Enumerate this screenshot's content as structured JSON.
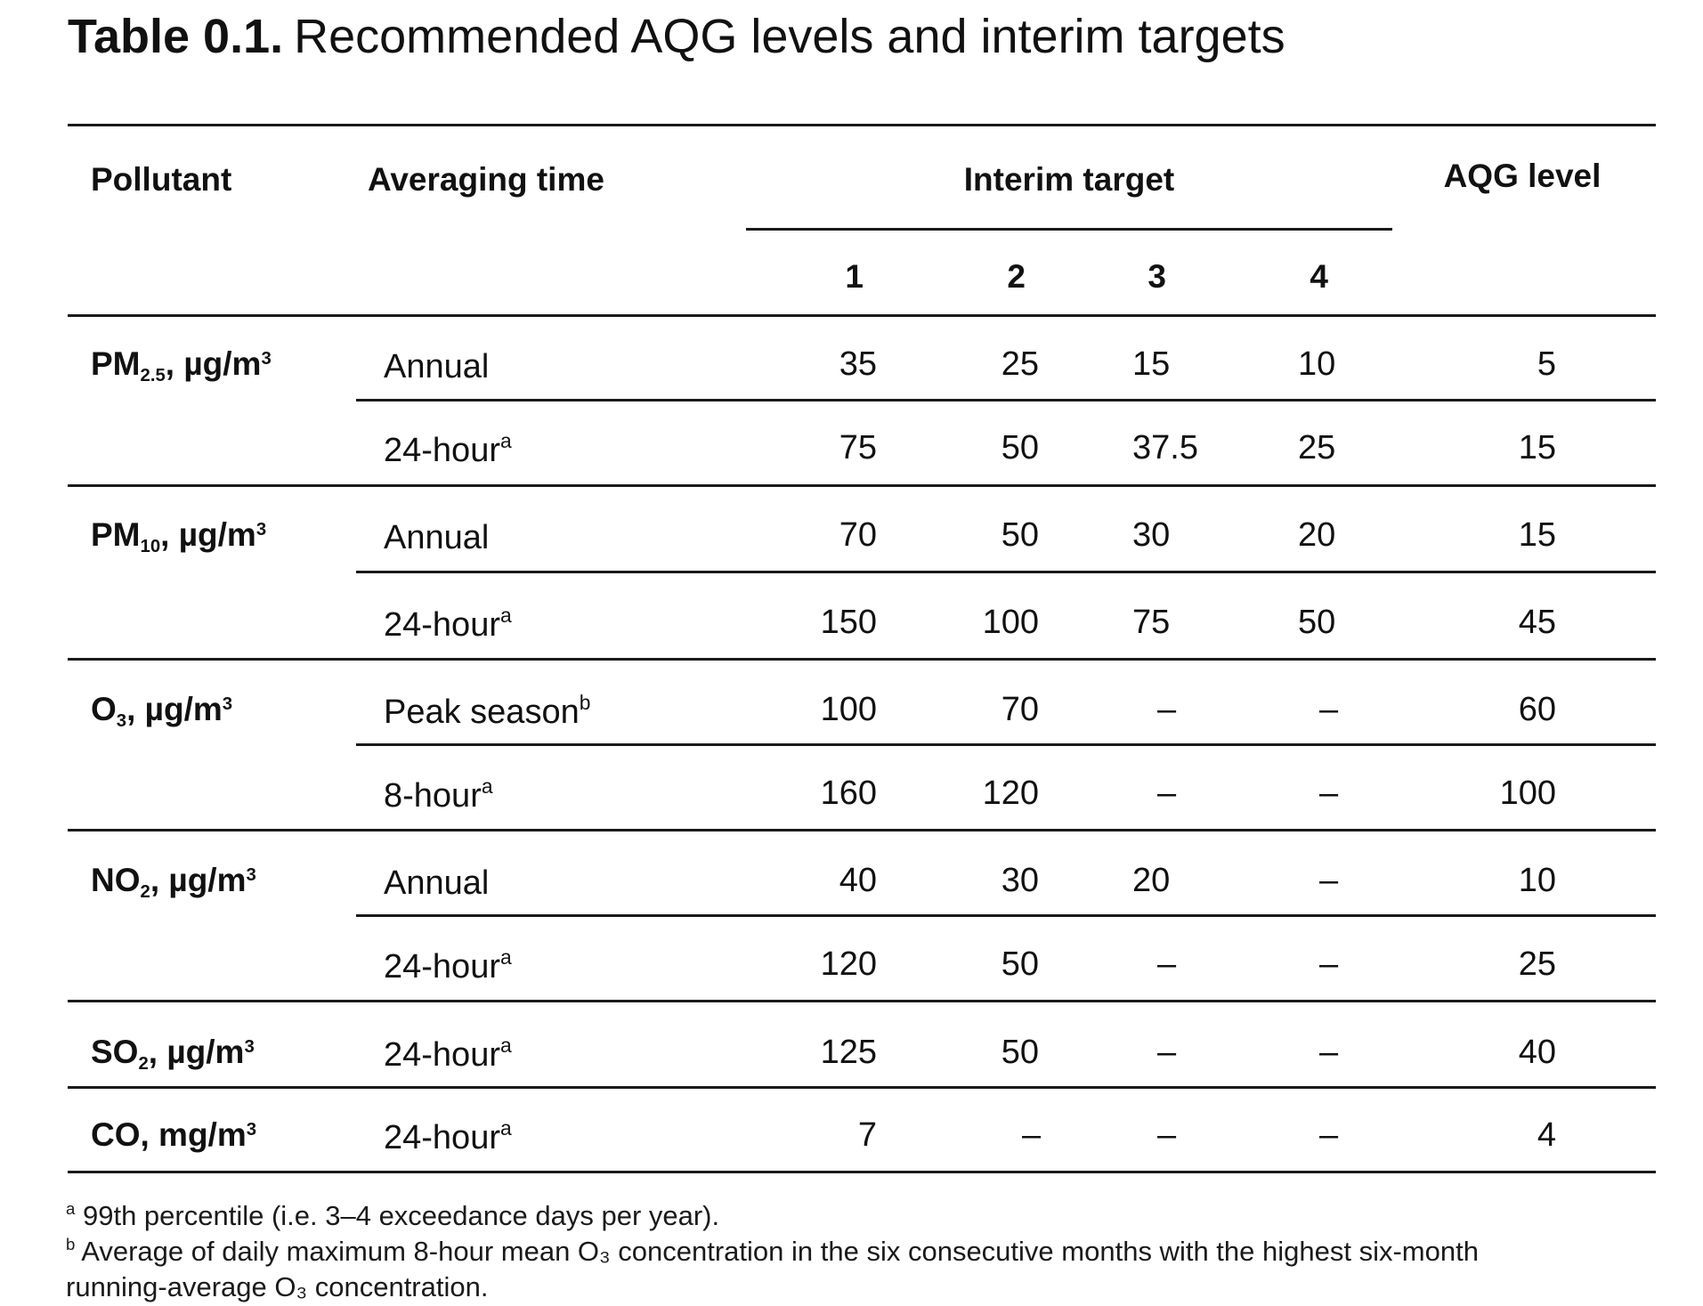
{
  "title": {
    "number": "Table 0.1.",
    "text": "Recommended AQG levels and interim targets"
  },
  "headers": {
    "pollutant": "Pollutant",
    "averaging_time": "Averaging time",
    "interim_target": "Interim target",
    "aqg_level": "AQG level",
    "it1": "1",
    "it2": "2",
    "it3": "3",
    "it4": "4"
  },
  "pollutants": [
    {
      "base": "PM",
      "sub": "2.5",
      "unit": ", µg/m",
      "sup": "3"
    },
    {
      "base": "PM",
      "sub": "10",
      "unit": ", µg/m",
      "sup": "3"
    },
    {
      "base": "O",
      "sub": "3",
      "unit": ", µg/m",
      "sup": "3"
    },
    {
      "base": "NO",
      "sub": "2",
      "unit": ", µg/m",
      "sup": "3"
    },
    {
      "base": "SO",
      "sub": "2",
      "unit": ", µg/m",
      "sup": "3"
    },
    {
      "base": "CO",
      "sub": "",
      "unit": ", mg/m",
      "sup": "3"
    }
  ],
  "rows": [
    {
      "avg": "Annual",
      "mark": "",
      "it1": "35",
      "it2": "25",
      "it3": "15",
      "it4": "10",
      "aqg": "5"
    },
    {
      "avg": "24-hour",
      "mark": "a",
      "it1": "75",
      "it2": "50",
      "it3": "37.5",
      "it4": "25",
      "aqg": "15"
    },
    {
      "avg": "Annual",
      "mark": "",
      "it1": "70",
      "it2": "50",
      "it3": "30",
      "it4": "20",
      "aqg": "15"
    },
    {
      "avg": "24-hour",
      "mark": "a",
      "it1": "150",
      "it2": "100",
      "it3": "75",
      "it4": "50",
      "aqg": "45"
    },
    {
      "avg": "Peak season",
      "mark": "b",
      "it1": "100",
      "it2": "70",
      "it3": "–",
      "it4": "–",
      "aqg": "60"
    },
    {
      "avg": "8-hour",
      "mark": "a",
      "it1": "160",
      "it2": "120",
      "it3": "–",
      "it4": "–",
      "aqg": "100"
    },
    {
      "avg": "Annual",
      "mark": "",
      "it1": "40",
      "it2": "30",
      "it3": "20",
      "it4": "–",
      "aqg": "10"
    },
    {
      "avg": "24-hour",
      "mark": "a",
      "it1": "120",
      "it2": "50",
      "it3": "–",
      "it4": "–",
      "aqg": "25"
    },
    {
      "avg": "24-hour",
      "mark": "a",
      "it1": "125",
      "it2": "50",
      "it3": "–",
      "it4": "–",
      "aqg": "40"
    },
    {
      "avg": "24-hour",
      "mark": "a",
      "it1": "7",
      "it2": "–",
      "it3": "–",
      "it4": "–",
      "aqg": "4"
    }
  ],
  "footnotes": {
    "a_mark": "a",
    "a_text": "99th percentile (i.e. 3–4 exceedance days per year).",
    "b_mark": "b",
    "b_line1": "Average of daily maximum 8-hour mean O₃ concentration in the six consecutive months with the highest six-month",
    "b_line2": "running-average O₃ concentration."
  }
}
